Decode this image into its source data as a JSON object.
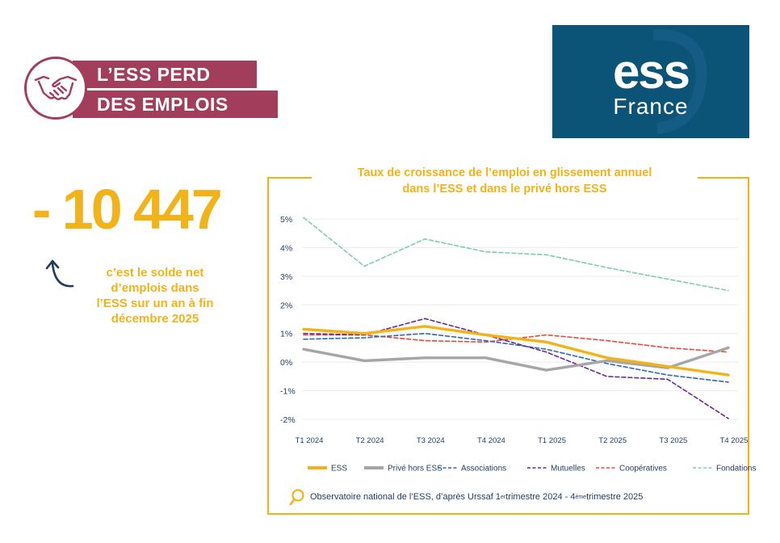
{
  "banner": {
    "line1": "L’ESS PERD",
    "line2": "DES EMPLOIS",
    "icon": "handshake-icon"
  },
  "logo": {
    "brand": "ess",
    "sub": "France"
  },
  "headline": {
    "number": "- 10 447",
    "caption": [
      "c’est le solde net",
      "d’emplois dans",
      "l’ESS sur un an à fin",
      "décembre 2025"
    ]
  },
  "colors": {
    "accent": "#f2b318",
    "brand": "#a33d5c",
    "logo_bg": "#0c5378",
    "ESS": "#f2b318",
    "prive": "#a6a6a6",
    "associations": "#2b6ab3",
    "mutuelles": "#6b2a8c",
    "cooperatives": "#e8493a",
    "fondations": "#7fcbb5"
  },
  "source": {
    "part1": "Observatoire national de l’ESS, d’après Urssaf 1",
    "sup1": "er",
    "part2": " trimestre 2024 - 4",
    "sup2": "ème",
    "part3": " trimestre 2025",
    "icon": "magnifier-icon"
  },
  "chart_data": {
    "type": "line",
    "title": [
      "Taux de croissance de l’emploi en glissement annuel",
      "dans l’ESS et dans le privé hors ESS"
    ],
    "categories": [
      "T1 2024",
      "T2 2024",
      "T3 2024",
      "T4 2024",
      "T1 2025",
      "T2 2025",
      "T3 2025",
      "T4 2025"
    ],
    "ylim": [
      -2,
      5
    ],
    "yticks": [
      5,
      4,
      3,
      2,
      1,
      0,
      -1,
      -2
    ],
    "ytick_labels": [
      "5%",
      "4%",
      "3%",
      "2%",
      "1%",
      "0%",
      "-1%",
      "-2%"
    ],
    "grid": true,
    "legend_position": "bottom",
    "series": [
      {
        "name": "ESS",
        "style": "solid-thick",
        "color": "#f2b318",
        "values": [
          1.15,
          1.0,
          1.25,
          0.95,
          0.7,
          0.15,
          -0.15,
          -0.45
        ]
      },
      {
        "name": "Privé hors ESS",
        "style": "solid-thick",
        "color": "#a6a6a6",
        "values": [
          0.45,
          0.05,
          0.15,
          0.15,
          -0.28,
          0.05,
          -0.2,
          0.5
        ]
      },
      {
        "name": "Associations",
        "style": "dashed",
        "color": "#2b6ab3",
        "values": [
          0.8,
          0.85,
          1.0,
          0.75,
          0.45,
          -0.05,
          -0.45,
          -0.7
        ]
      },
      {
        "name": "Mutuelles",
        "style": "dashed",
        "color": "#6b2a8c",
        "values": [
          1.0,
          0.95,
          1.52,
          0.95,
          0.35,
          -0.5,
          -0.6,
          -1.97
        ]
      },
      {
        "name": "Coopératives",
        "style": "dashed",
        "color": "#e8493a",
        "values": [
          0.95,
          0.95,
          0.75,
          0.7,
          0.95,
          0.75,
          0.5,
          0.35
        ]
      },
      {
        "name": "Fondations",
        "style": "dashed",
        "color": "#7fcbb5",
        "values": [
          5.05,
          3.35,
          4.3,
          3.85,
          3.75,
          3.3,
          2.9,
          2.5
        ]
      }
    ]
  }
}
